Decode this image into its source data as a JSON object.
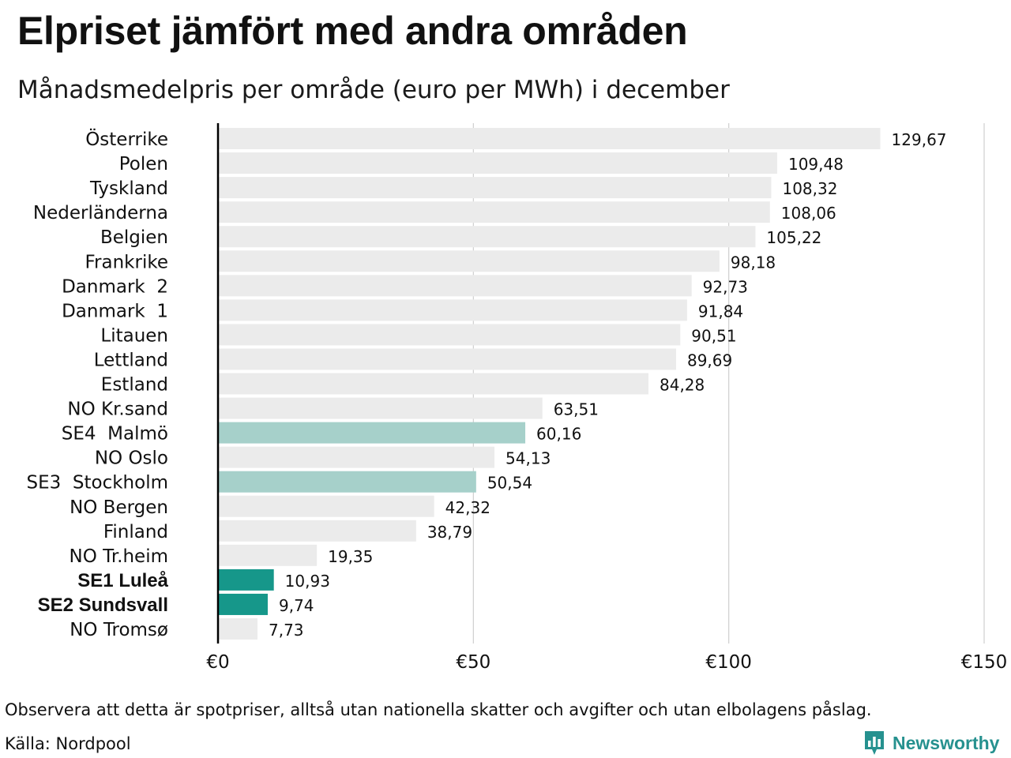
{
  "header": {
    "title": "Elpriset jämfört med andra områden",
    "subtitle": "Månadsmedelpris per område (euro per MWh) i december"
  },
  "footer": {
    "note": "Observera att detta är spotpriser, alltså utan nationella skatter och avgifter och utan elbolagens påslag.",
    "source": "Källa: Nordpool",
    "brand": "Newsworthy",
    "brand_icon": "bar-chart-logo-icon"
  },
  "colors": {
    "default_bar": "#ebebeb",
    "highlight_light": "#a6d0ca",
    "highlight_dark": "#16978a",
    "grid": "#cfcfcf",
    "axis": "#000000",
    "brand": "#26918f"
  },
  "chart_data": {
    "type": "bar",
    "orientation": "horizontal",
    "categories": [
      "Österrike",
      "Polen",
      "Tyskland",
      "Nederländerna",
      "Belgien",
      "Frankrike",
      "Danmark  2",
      "Danmark  1",
      "Litauen",
      "Lettland",
      "Estland",
      "NO Kr.sand",
      "SE4  Malmö",
      "NO Oslo",
      "SE3  Stockholm",
      "NO Bergen",
      "Finland",
      "NO Tr.heim",
      "SE1 Luleå",
      "SE2 Sundsvall",
      "NO Tromsø"
    ],
    "values": [
      129.67,
      109.48,
      108.32,
      108.06,
      105.22,
      98.18,
      92.73,
      91.84,
      90.51,
      89.69,
      84.28,
      63.51,
      60.16,
      54.13,
      50.54,
      42.32,
      38.79,
      19.35,
      10.93,
      9.74,
      7.73
    ],
    "value_labels": [
      "129,67",
      "109,48",
      "108,32",
      "108,06",
      "105,22",
      "98,18",
      "92,73",
      "91,84",
      "90,51",
      "89,69",
      "84,28",
      "63,51",
      "60,16",
      "54,13",
      "50,54",
      "42,32",
      "38,79",
      "19,35",
      "10,93",
      "9,74",
      "7,73"
    ],
    "highlight": [
      "none",
      "none",
      "none",
      "none",
      "none",
      "none",
      "none",
      "none",
      "none",
      "none",
      "none",
      "none",
      "light",
      "none",
      "light",
      "none",
      "none",
      "none",
      "dark",
      "dark",
      "none"
    ],
    "bold_labels": [
      false,
      false,
      false,
      false,
      false,
      false,
      false,
      false,
      false,
      false,
      false,
      false,
      false,
      false,
      false,
      false,
      false,
      false,
      true,
      true,
      false
    ],
    "xlim": [
      0,
      150
    ],
    "xticks": [
      0,
      50,
      100,
      150
    ],
    "xtick_labels": [
      "€0",
      "€50",
      "€100",
      "€150"
    ],
    "grid": true
  }
}
